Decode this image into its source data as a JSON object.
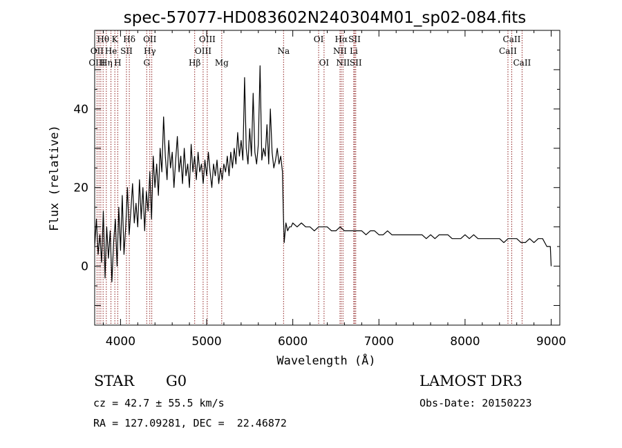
{
  "chart_data": {
    "type": "line",
    "title": "spec-57077-HD083602N240304M01_sp02-084.fits",
    "xlabel": "Wavelength (Å)",
    "ylabel": "Flux (relative)",
    "xlim": [
      3700,
      9100
    ],
    "ylim": [
      -15,
      60
    ],
    "xticks": [
      4000,
      5000,
      6000,
      7000,
      8000,
      9000
    ],
    "yticks": [
      0,
      20,
      40
    ],
    "grid": false,
    "series": [
      {
        "name": "spectrum",
        "x": [
          3700,
          3720,
          3740,
          3760,
          3780,
          3800,
          3820,
          3840,
          3860,
          3880,
          3900,
          3920,
          3940,
          3960,
          3980,
          4000,
          4020,
          4040,
          4060,
          4080,
          4100,
          4120,
          4140,
          4160,
          4180,
          4200,
          4220,
          4240,
          4260,
          4280,
          4300,
          4320,
          4340,
          4360,
          4380,
          4400,
          4420,
          4440,
          4460,
          4480,
          4500,
          4520,
          4540,
          4560,
          4580,
          4600,
          4620,
          4640,
          4660,
          4680,
          4700,
          4720,
          4740,
          4760,
          4780,
          4800,
          4820,
          4840,
          4860,
          4880,
          4900,
          4920,
          4940,
          4960,
          4980,
          5000,
          5020,
          5040,
          5060,
          5080,
          5100,
          5120,
          5140,
          5160,
          5180,
          5200,
          5220,
          5240,
          5260,
          5280,
          5300,
          5320,
          5340,
          5360,
          5380,
          5400,
          5420,
          5440,
          5460,
          5480,
          5500,
          5520,
          5540,
          5560,
          5580,
          5600,
          5620,
          5640,
          5660,
          5680,
          5700,
          5720,
          5740,
          5760,
          5780,
          5800,
          5820,
          5840,
          5860,
          5880,
          5890,
          5900,
          5920,
          5940,
          5960,
          5980,
          6000,
          6050,
          6100,
          6150,
          6200,
          6250,
          6300,
          6350,
          6400,
          6450,
          6500,
          6550,
          6600,
          6650,
          6700,
          6750,
          6800,
          6850,
          6900,
          6950,
          7000,
          7050,
          7100,
          7150,
          7200,
          7250,
          7300,
          7350,
          7400,
          7450,
          7500,
          7550,
          7600,
          7650,
          7700,
          7750,
          7800,
          7850,
          7900,
          7950,
          8000,
          8050,
          8100,
          8150,
          8200,
          8250,
          8300,
          8350,
          8400,
          8450,
          8500,
          8550,
          8600,
          8650,
          8700,
          8750,
          8800,
          8850,
          8900,
          8950,
          8990,
          9000
        ],
        "y": [
          5,
          12,
          3,
          8,
          1,
          14,
          -3,
          10,
          2,
          9,
          -4,
          6,
          12,
          0,
          15,
          4,
          18,
          3,
          10,
          20,
          8,
          14,
          21,
          11,
          16,
          10,
          22,
          12,
          20,
          9,
          19,
          14,
          24,
          12,
          28,
          20,
          26,
          18,
          30,
          24,
          38,
          28,
          22,
          32,
          25,
          29,
          20,
          27,
          33,
          24,
          28,
          21,
          30,
          23,
          26,
          20,
          31,
          24,
          28,
          22,
          29,
          24,
          26,
          21,
          27,
          23,
          29,
          24,
          20,
          26,
          23,
          27,
          21,
          25,
          22,
          26,
          24,
          28,
          23,
          29,
          25,
          30,
          26,
          34,
          28,
          32,
          27,
          48,
          30,
          26,
          35,
          28,
          44,
          29,
          26,
          31,
          51,
          27,
          30,
          28,
          36,
          26,
          40,
          29,
          25,
          27,
          30,
          26,
          28,
          24,
          14,
          6,
          11,
          9,
          10,
          10,
          11,
          10,
          11,
          10,
          10,
          9,
          10,
          10,
          10,
          9,
          9,
          10,
          9,
          9,
          9,
          9,
          9,
          8,
          9,
          9,
          8,
          8,
          9,
          8,
          8,
          8,
          8,
          8,
          8,
          8,
          8,
          7,
          8,
          7,
          8,
          8,
          8,
          7,
          7,
          7,
          8,
          7,
          8,
          7,
          7,
          7,
          7,
          7,
          7,
          6,
          7,
          7,
          7,
          6,
          6,
          7,
          6,
          7,
          7,
          5,
          5,
          0
        ]
      }
    ],
    "emission_lines": [
      {
        "label": "Hθ",
        "x": 3798,
        "row": 0
      },
      {
        "label": "K",
        "x": 3934,
        "row": 0
      },
      {
        "label": "Hδ",
        "x": 4102,
        "row": 0
      },
      {
        "label": "OII",
        "x": 4340,
        "row": 0
      },
      {
        "label": "OIII",
        "x": 5007,
        "row": 0
      },
      {
        "label": "OI",
        "x": 6300,
        "row": 0
      },
      {
        "label": "Hα",
        "x": 6563,
        "row": 0
      },
      {
        "label": "SII",
        "x": 6717,
        "row": 0
      },
      {
        "label": "CaII",
        "x": 8542,
        "row": 0
      },
      {
        "label": "OII",
        "x": 3727,
        "row": 1
      },
      {
        "label": "He",
        "x": 3889,
        "row": 1
      },
      {
        "label": "SII",
        "x": 4069,
        "row": 1
      },
      {
        "label": "Hγ",
        "x": 4340,
        "row": 1
      },
      {
        "label": "OIII",
        "x": 4959,
        "row": 1
      },
      {
        "label": "Na",
        "x": 5893,
        "row": 1
      },
      {
        "label": "NII",
        "x": 6548,
        "row": 1
      },
      {
        "label": "Li",
        "x": 6708,
        "row": 1
      },
      {
        "label": "CaII",
        "x": 8498,
        "row": 1
      },
      {
        "label": "OIII",
        "x": 3727,
        "row": 2
      },
      {
        "label": "Hη",
        "x": 3835,
        "row": 2
      },
      {
        "label": "H",
        "x": 3968,
        "row": 2
      },
      {
        "label": "G",
        "x": 4304,
        "row": 2
      },
      {
        "label": "Hβ",
        "x": 4861,
        "row": 2
      },
      {
        "label": "Mg",
        "x": 5175,
        "row": 2
      },
      {
        "label": "OI",
        "x": 6363,
        "row": 2
      },
      {
        "label": "NII",
        "x": 6583,
        "row": 2
      },
      {
        "label": "SII",
        "x": 6731,
        "row": 2
      },
      {
        "label": "CaII",
        "x": 8662,
        "row": 2
      }
    ],
    "line_markers_x": [
      3727,
      3750,
      3771,
      3798,
      3835,
      3889,
      3934,
      3968,
      4069,
      4102,
      4304,
      4340,
      4363,
      4861,
      4959,
      5007,
      5175,
      5893,
      6300,
      6363,
      6548,
      6563,
      6583,
      6708,
      6717,
      6731,
      8498,
      8542,
      8662
    ],
    "line_marker_color": "#8b1a1a"
  },
  "info": {
    "object_class": "STAR",
    "subclass": "G0",
    "survey": "LAMOST DR3",
    "redshift": "cz = 42.7 ± 55.5 km/s",
    "obs_date": "Obs-Date: 20150223",
    "coords": "RA = 127.09281, DEC =  22.46872"
  }
}
